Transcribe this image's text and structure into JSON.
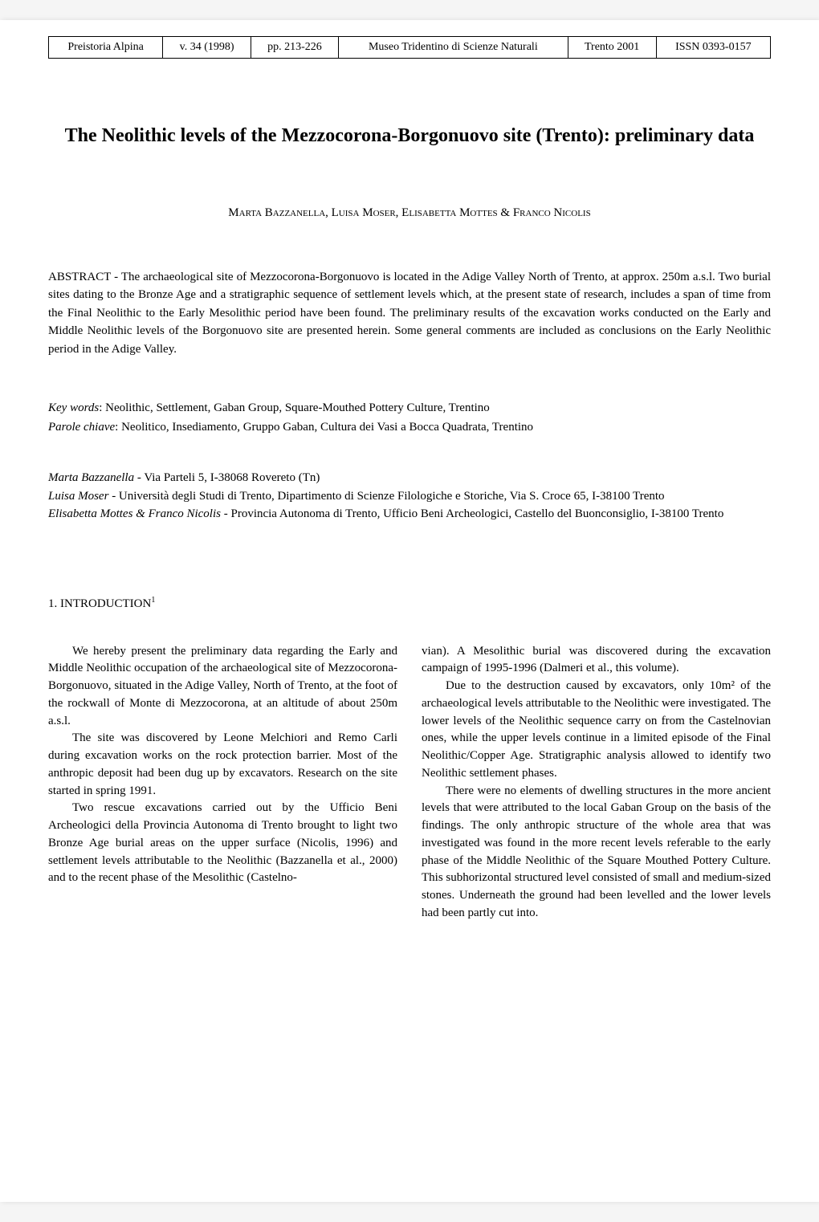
{
  "header": {
    "journal": "Preistoria Alpina",
    "volume": "v. 34 (1998)",
    "pages": "pp. 213-226",
    "publisher": "Museo Tridentino di Scienze Naturali",
    "location_year": "Trento 2001",
    "issn": "ISSN 0393-0157"
  },
  "title": "The Neolithic levels of the Mezzocorona-Borgonuovo site (Trento): preliminary data",
  "authors": "Marta Bazzanella, Luisa Moser, Elisabetta Mottes & Franco Nicolis",
  "abstract": {
    "label": "ABSTRACT - ",
    "text": "The archaeological site of Mezzocorona-Borgonuovo is located in the Adige Valley North of Trento, at approx. 250m a.s.l. Two burial sites dating to the Bronze Age and a stratigraphic sequence of settlement levels which, at the present state of research, includes a span of time from the Final Neolithic to the Early Mesolithic period have been found. The preliminary results of the excavation works conducted on the Early and Middle Neolithic levels of the Borgonuovo site are presented herein. Some general comments are included as conclusions on the Early Neolithic period in the Adige Valley."
  },
  "keywords": {
    "en_label": "Key words",
    "en_text": ": Neolithic, Settlement, Gaban Group, Square-Mouthed Pottery Culture, Trentino",
    "it_label": "Parole chiave",
    "it_text": ": Neolitico, Insediamento, Gruppo Gaban, Cultura dei Vasi a Bocca Quadrata, Trentino"
  },
  "affiliations": [
    {
      "name": "Marta Bazzanella",
      "text": " - Via Parteli 5, I-38068 Rovereto (Tn)"
    },
    {
      "name": "Luisa Moser",
      "text": " - Università degli Studi di Trento, Dipartimento di Scienze Filologiche e Storiche, Via S. Croce 65, I-38100 Trento"
    },
    {
      "name": "Elisabetta Mottes & Franco Nicolis",
      "text": " - Provincia Autonoma di Trento, Ufficio Beni Archeologici, Castello del Buonconsiglio, I-38100 Trento"
    }
  ],
  "section_heading": "1. INTRODUCTION",
  "section_sup": "1",
  "body": {
    "left": [
      "We hereby present the preliminary data regarding the Early and Middle Neolithic occupation of the archaeological site of Mezzocorona-Borgonuovo, situated in the Adige Valley, North of Trento, at the foot of the rockwall of Monte di Mezzocorona, at an altitude of about 250m a.s.l.",
      "The site was discovered by Leone Melchiori and Remo Carli during excavation works on the rock protection barrier. Most of the anthropic deposit had been dug up by excavators. Research on the site started in spring 1991.",
      "Two rescue excavations carried out by the Ufficio Beni Archeologici della Provincia Autonoma di Trento brought to light two Bronze Age burial areas on the upper surface (Nicolis, 1996) and settlement levels attributable to the Neolithic (Bazzanella et al., 2000) and to the recent phase of the Mesolithic (Castelno-"
    ],
    "right": [
      "vian). A Mesolithic burial was discovered during the excavation campaign of 1995-1996 (Dalmeri et al., this volume).",
      "Due to the destruction caused by excavators, only 10m² of the archaeological levels attributable to the Neolithic were investigated. The lower levels of the Neolithic sequence carry on from the Castelnovian ones, while the upper levels continue in a limited episode of the Final Neolithic/Copper Age. Stratigraphic analysis allowed to identify two Neolithic settlement phases.",
      "There were no elements of dwelling structures in the more ancient levels that were attributed to the local Gaban Group on the basis of the findings. The only anthropic structure of the whole area that was investigated was found in the more recent levels referable to the early phase of the Middle Neolithic of the Square Mouthed Pottery Culture. This subhorizontal structured level consisted of small and medium-sized stones. Underneath the ground had been levelled and the lower levels had been partly cut into."
    ]
  }
}
